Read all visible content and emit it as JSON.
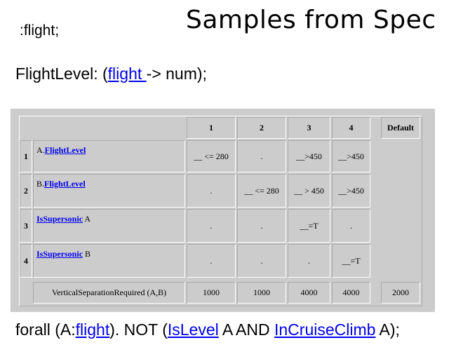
{
  "title": "Samples from Spec",
  "line1": ":flight;",
  "line2": {
    "prefix": "FlightLevel: (",
    "link": "flight ",
    "suffix": "-> num);"
  },
  "table": {
    "columns": [
      "1",
      "2",
      "3",
      "4"
    ],
    "default_label": "Default",
    "rows": [
      {
        "num": "1",
        "prefix": "A.",
        "link": "FlightLevel",
        "suffix": "",
        "cells": [
          "__ <= 280",
          ".",
          "__>450",
          "__>450"
        ]
      },
      {
        "num": "2",
        "prefix": "B.",
        "link": "FlightLevel",
        "suffix": "",
        "cells": [
          ".",
          "__ <= 280",
          "__ > 450",
          "__>450"
        ]
      },
      {
        "num": "3",
        "prefix": "",
        "link": "IsSupersonic",
        "suffix": " A",
        "cells": [
          ".",
          ".",
          "__=T",
          "."
        ]
      },
      {
        "num": "4",
        "prefix": "",
        "link": "IsSupersonic",
        "suffix": " B",
        "cells": [
          ".",
          ".",
          ".",
          "__=T"
        ]
      }
    ],
    "output": {
      "label": "VerticalSeparationRequired (A,B)",
      "values": [
        "1000",
        "1000",
        "4000",
        "4000"
      ],
      "default": "2000"
    }
  },
  "line3": {
    "p1": "forall (A:",
    "l1": "flight",
    "p2": "). NOT (",
    "l2": "IsLevel",
    "p3": " A AND ",
    "l3": "InCruiseClimb",
    "p4": " A);"
  }
}
